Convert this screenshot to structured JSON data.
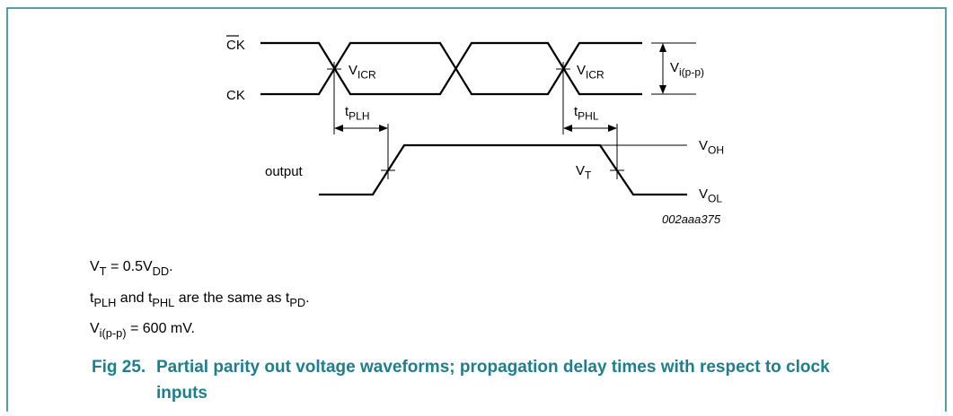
{
  "labels": {
    "ck_bar": "CK",
    "ck": "CK",
    "vicr_left": [
      "V",
      "ICR"
    ],
    "vicr_right": [
      "V",
      "ICR"
    ],
    "vipp": [
      "V",
      "i(p-p)"
    ],
    "tplh": [
      "t",
      "PLH"
    ],
    "tphl": [
      "t",
      "PHL"
    ],
    "output": "output",
    "voh": [
      "V",
      "OH"
    ],
    "vol": [
      "V",
      "OL"
    ],
    "vt": [
      "V",
      "T"
    ],
    "figure_id": "002aaa375"
  },
  "notes": [
    [
      "V",
      "T",
      " = 0.5V",
      "DD",
      "."
    ],
    [
      "t",
      "PLH",
      " and t",
      "PHL",
      " are the same as t",
      "PD",
      "."
    ],
    [
      "V",
      "i(p-p)",
      " = 600 mV."
    ]
  ],
  "caption": {
    "number": "Fig 25.",
    "title_lines": [
      "Partial parity out voltage waveforms; propagation delay times with respect to clock",
      "inputs"
    ]
  }
}
